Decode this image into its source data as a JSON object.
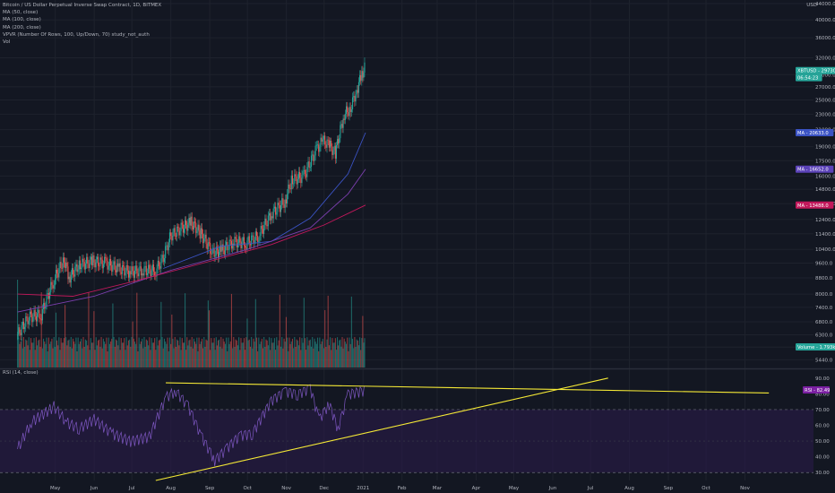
{
  "header": {
    "title": "Bitcoin / US Dollar Perpetual Inverse Swap Contract, 1D, BITMEX",
    "indicators": [
      "MA (50, close)",
      "MA (100, close)",
      "MA (200, close)",
      "VPVR (Number Of Rows, 100, Up/Down, 70) study_not_auth",
      "Vol"
    ],
    "currency": "USD",
    "rsi_label": "RSI (14, close)"
  },
  "colors": {
    "background": "#131722",
    "grid": "#1e222d",
    "up": "#26a69a",
    "down": "#ef5350",
    "ma50": "#3b53c4",
    "ma100": "#7b3fae",
    "ma200": "#c2185b",
    "rsi": "#7e57c2",
    "trendline": "#f5e936",
    "price_tag": "#26a69a"
  },
  "chart_data": [
    {
      "type": "candlestick",
      "title": "Bitcoin / US Dollar Perpetual Inverse Swap Contract, 1D, BITMEX",
      "log_scale": true,
      "ylim": [
        5200,
        44000
      ],
      "y_ticks": [
        "44000.0",
        "40000.0",
        "36000.0",
        "32000.0",
        "29000.0",
        "27000.0",
        "25000.0",
        "23000.0",
        "21000.0",
        "19000.0",
        "17500.0",
        "16000.0",
        "14800.0",
        "13600.0",
        "12400.0",
        "11400.0",
        "10400.0",
        "9600.0",
        "8800.0",
        "8000.0",
        "7400.0",
        "6800.0",
        "6300.0",
        "5860.0",
        "5440.0"
      ],
      "x_ticks": [
        "May",
        "Jun",
        "Jul",
        "Aug",
        "Sep",
        "Oct",
        "Nov",
        "Dec",
        "2021",
        "Feb",
        "Mar",
        "Apr",
        "May",
        "Jun",
        "Jul",
        "Aug",
        "Sep",
        "Oct",
        "Nov"
      ],
      "series": [
        {
          "name": "XBTUSD",
          "type": "candles",
          "points": [
            [
              "2020-04-01",
              6300
            ],
            [
              "2020-04-10",
              7000
            ],
            [
              "2020-04-20",
              7100
            ],
            [
              "2020-04-30",
              8700
            ],
            [
              "2020-05-08",
              9800
            ],
            [
              "2020-05-12",
              8800
            ],
            [
              "2020-05-20",
              9500
            ],
            [
              "2020-05-31",
              9700
            ],
            [
              "2020-06-10",
              9600
            ],
            [
              "2020-06-20",
              9300
            ],
            [
              "2020-06-30",
              9100
            ],
            [
              "2020-07-10",
              9200
            ],
            [
              "2020-07-20",
              9200
            ],
            [
              "2020-07-26",
              9900
            ],
            [
              "2020-08-01",
              11300
            ],
            [
              "2020-08-10",
              11800
            ],
            [
              "2020-08-17",
              12200
            ],
            [
              "2020-08-25",
              11400
            ],
            [
              "2020-09-03",
              10200
            ],
            [
              "2020-09-10",
              10300
            ],
            [
              "2020-09-20",
              10900
            ],
            [
              "2020-09-30",
              10800
            ],
            [
              "2020-10-10",
              11300
            ],
            [
              "2020-10-20",
              12800
            ],
            [
              "2020-10-31",
              13800
            ],
            [
              "2020-11-05",
              15600
            ],
            [
              "2020-11-15",
              16000
            ],
            [
              "2020-11-25",
              18700
            ],
            [
              "2020-11-30",
              19700
            ],
            [
              "2020-12-05",
              19200
            ],
            [
              "2020-12-10",
              18300
            ],
            [
              "2020-12-17",
              23000
            ],
            [
              "2020-12-22",
              23800
            ],
            [
              "2020-12-27",
              26500
            ],
            [
              "2020-12-31",
              29000
            ],
            [
              "2021-01-03",
              30500
            ]
          ]
        },
        {
          "name": "MA (50, close)",
          "values": [
            [
              "2020-07-26",
              9300
            ],
            [
              "2020-09-10",
              10600
            ],
            [
              "2020-10-20",
              10900
            ],
            [
              "2020-11-20",
              12500
            ],
            [
              "2020-12-20",
              16200
            ],
            [
              "2021-01-03",
              20633
            ]
          ]
        },
        {
          "name": "MA (100, close)",
          "values": [
            [
              "2020-04-01",
              7200
            ],
            [
              "2020-06-01",
              7900
            ],
            [
              "2020-08-01",
              9200
            ],
            [
              "2020-10-01",
              10400
            ],
            [
              "2020-11-20",
              11800
            ],
            [
              "2020-12-20",
              14400
            ],
            [
              "2021-01-03",
              16652
            ]
          ]
        },
        {
          "name": "MA (200, close)",
          "values": [
            [
              "2020-04-01",
              8000
            ],
            [
              "2020-05-15",
              7900
            ],
            [
              "2020-07-01",
              8600
            ],
            [
              "2020-09-01",
              9700
            ],
            [
              "2020-10-20",
              10700
            ],
            [
              "2020-12-01",
              12000
            ],
            [
              "2021-01-03",
              13488
            ]
          ]
        }
      ],
      "price_labels": [
        {
          "label": "XBTUSD",
          "value": "29730.0",
          "color": "#26a69a"
        },
        {
          "label": "",
          "value": "06:54:23",
          "color": "#26a69a"
        },
        {
          "label": "MA",
          "value": "20633.0",
          "color": "#3b53c4"
        },
        {
          "label": "MA",
          "value": "16652.0",
          "color": "#5b42b8"
        },
        {
          "label": "MA",
          "value": "13488.0",
          "color": "#c2185b"
        },
        {
          "label": "Volume",
          "value": "1.793k",
          "color": "#26a69a"
        }
      ]
    },
    {
      "type": "line",
      "title": "RSI (14, close)",
      "ylim": [
        25,
        95
      ],
      "y_ticks": [
        "90.00",
        "80.00",
        "70.00",
        "60.00",
        "50.00",
        "40.00",
        "30.00"
      ],
      "bands": [
        30,
        70
      ],
      "series": [
        {
          "name": "RSI",
          "points": [
            [
              "2020-04-01",
              45
            ],
            [
              "2020-04-12",
              62
            ],
            [
              "2020-04-30",
              72
            ],
            [
              "2020-05-10",
              62
            ],
            [
              "2020-05-20",
              58
            ],
            [
              "2020-06-01",
              64
            ],
            [
              "2020-06-15",
              55
            ],
            [
              "2020-06-30",
              50
            ],
            [
              "2020-07-15",
              53
            ],
            [
              "2020-07-28",
              78
            ],
            [
              "2020-08-05",
              82
            ],
            [
              "2020-08-15",
              72
            ],
            [
              "2020-08-25",
              54
            ],
            [
              "2020-09-05",
              38
            ],
            [
              "2020-09-15",
              46
            ],
            [
              "2020-09-25",
              54
            ],
            [
              "2020-10-05",
              55
            ],
            [
              "2020-10-20",
              76
            ],
            [
              "2020-10-31",
              82
            ],
            [
              "2020-11-10",
              80
            ],
            [
              "2020-11-20",
              84
            ],
            [
              "2020-11-27",
              64
            ],
            [
              "2020-12-05",
              74
            ],
            [
              "2020-12-12",
              58
            ],
            [
              "2020-12-20",
              80
            ],
            [
              "2021-01-03",
              82.49
            ]
          ]
        }
      ],
      "value_label": {
        "label": "RSI",
        "value": "82.49"
      },
      "trendlines": [
        {
          "from": [
            "2020-07-28",
            87
          ],
          "to": [
            "2021-11-20",
            80.5
          ]
        },
        {
          "from": [
            "2020-07-20",
            25
          ],
          "to": [
            "2021-07-15",
            90
          ]
        }
      ]
    }
  ]
}
